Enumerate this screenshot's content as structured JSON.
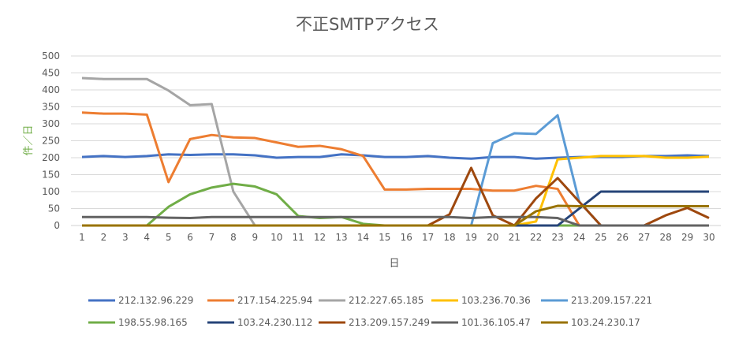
{
  "chart_data": {
    "type": "line",
    "title": "不正SMTPアクセス",
    "xlabel": "日",
    "ylabel": "件／日",
    "ylim": [
      0,
      500
    ],
    "yticks": [
      0,
      50,
      100,
      150,
      200,
      250,
      300,
      350,
      400,
      450,
      500
    ],
    "x": [
      1,
      2,
      3,
      4,
      5,
      6,
      7,
      8,
      9,
      10,
      11,
      12,
      13,
      14,
      15,
      16,
      17,
      18,
      19,
      20,
      21,
      22,
      23,
      24,
      25,
      26,
      27,
      28,
      29,
      30
    ],
    "grid": true,
    "legend_position": "bottom",
    "series": [
      {
        "name": "212.132.96.229",
        "color": "#4472c4",
        "values": [
          202,
          205,
          202,
          205,
          210,
          208,
          210,
          210,
          207,
          200,
          202,
          202,
          210,
          207,
          202,
          202,
          205,
          200,
          197,
          202,
          202,
          197,
          200,
          202,
          202,
          202,
          205,
          205,
          207,
          205
        ]
      },
      {
        "name": "217.154.225.94",
        "color": "#ed7d31",
        "values": [
          333,
          330,
          330,
          327,
          128,
          255,
          267,
          260,
          258,
          245,
          232,
          235,
          225,
          205,
          106,
          106,
          108,
          108,
          108,
          103,
          103,
          117,
          108,
          0,
          0,
          0,
          0,
          0,
          0,
          0
        ]
      },
      {
        "name": "212.227.65.185",
        "color": "#a5a5a5",
        "values": [
          435,
          432,
          432,
          432,
          398,
          355,
          358,
          100,
          0,
          0,
          0,
          0,
          0,
          0,
          0,
          0,
          0,
          0,
          0,
          0,
          0,
          0,
          0,
          0,
          0,
          0,
          0,
          0,
          0,
          0
        ]
      },
      {
        "name": "103.236.70.36",
        "color": "#ffc000",
        "values": [
          0,
          0,
          0,
          0,
          0,
          0,
          0,
          0,
          0,
          0,
          0,
          0,
          0,
          0,
          0,
          0,
          0,
          0,
          0,
          0,
          0,
          12,
          195,
          200,
          205,
          205,
          205,
          200,
          200,
          203
        ]
      },
      {
        "name": "213.209.157.221",
        "color": "#5b9bd5",
        "values": [
          0,
          0,
          0,
          0,
          0,
          0,
          0,
          0,
          0,
          0,
          0,
          0,
          0,
          0,
          0,
          0,
          0,
          0,
          0,
          243,
          272,
          270,
          325,
          70,
          0,
          0,
          0,
          0,
          0,
          0
        ]
      },
      {
        "name": "198.55.98.165",
        "color": "#70ad47",
        "values": [
          0,
          0,
          0,
          0,
          55,
          92,
          112,
          123,
          115,
          92,
          28,
          22,
          25,
          5,
          0,
          0,
          0,
          0,
          0,
          0,
          0,
          0,
          0,
          0,
          0,
          0,
          0,
          0,
          0,
          0
        ]
      },
      {
        "name": "103.24.230.112",
        "color": "#264478",
        "values": [
          0,
          0,
          0,
          0,
          0,
          0,
          0,
          0,
          0,
          0,
          0,
          0,
          0,
          0,
          0,
          0,
          0,
          0,
          0,
          0,
          0,
          0,
          0,
          50,
          100,
          100,
          100,
          100,
          100,
          100
        ]
      },
      {
        "name": "213.209.157.249",
        "color": "#9e480e",
        "values": [
          0,
          0,
          0,
          0,
          0,
          0,
          0,
          0,
          0,
          0,
          0,
          0,
          0,
          0,
          0,
          0,
          0,
          33,
          170,
          30,
          0,
          80,
          140,
          70,
          0,
          0,
          0,
          30,
          52,
          22
        ]
      },
      {
        "name": "101.36.105.47",
        "color": "#636363",
        "values": [
          25,
          25,
          25,
          25,
          23,
          22,
          25,
          25,
          25,
          25,
          25,
          25,
          25,
          25,
          25,
          25,
          25,
          25,
          22,
          25,
          25,
          25,
          22,
          0,
          0,
          0,
          0,
          0,
          0,
          0
        ]
      },
      {
        "name": "103.24.230.17",
        "color": "#997300",
        "values": [
          0,
          0,
          0,
          0,
          0,
          0,
          0,
          0,
          0,
          0,
          0,
          0,
          0,
          0,
          0,
          0,
          0,
          0,
          0,
          0,
          0,
          42,
          58,
          57,
          57,
          57,
          57,
          57,
          57,
          57
        ]
      }
    ]
  }
}
